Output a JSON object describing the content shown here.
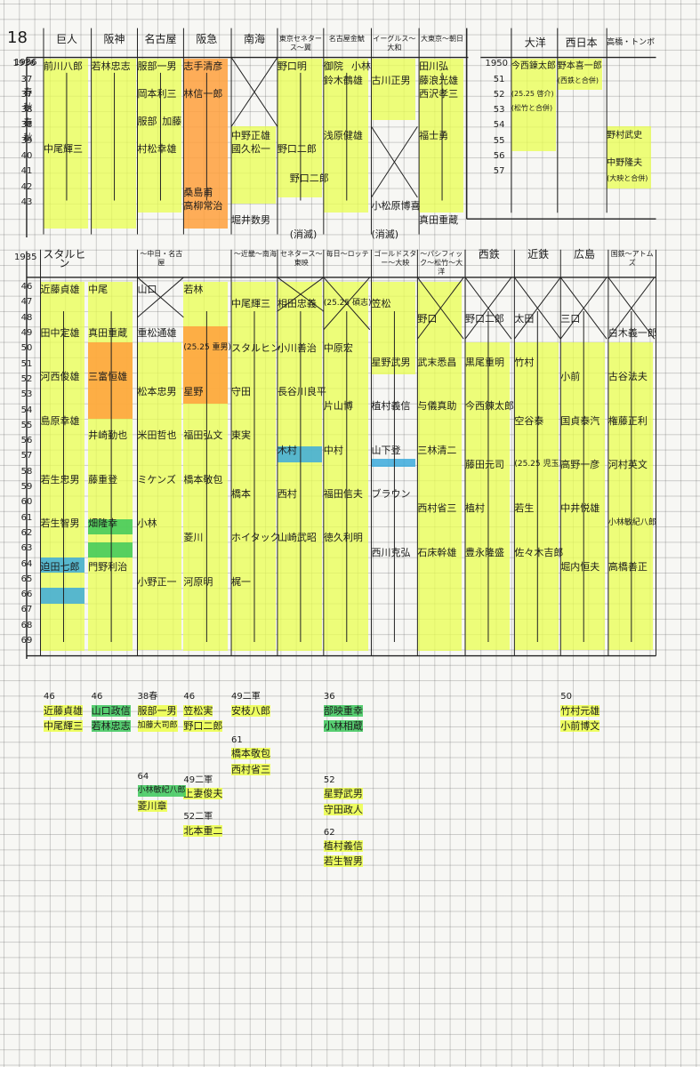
{
  "top_section": {
    "era": "1936",
    "headers": [
      "巨人",
      "阪神",
      "名古屋",
      "阪急",
      "南海",
      "東京セネタース〜翼",
      "名古屋金鯱",
      "イーグルス〜大和",
      "大東京〜朝日"
    ],
    "years": [
      "1936",
      "37春",
      "37秋",
      "38春",
      "38秋",
      "39",
      "40",
      "41",
      "42",
      "43"
    ],
    "names": [
      "前川八郎",
      "若林忠志",
      "服部一男",
      "志手清彦",
      "野口明",
      "御院",
      "小林",
      "田川弘",
      "鈴木鶴雄",
      "古川正男",
      "藤浪光雄",
      "西沢孝三",
      "岡本利三",
      "林信一郎",
      "服部",
      "加藤",
      "村松幸雄",
      "中尾輝三",
      "中野正雄",
      "國久松一",
      "野口二郎",
      "浅原健雄",
      "福士勇",
      "野口二郎",
      "桑島甫",
      "高柳常治",
      "堀井数男",
      "小松原博喜",
      "真田重蔵",
      "(消滅)",
      "(消滅)"
    ]
  },
  "top_right": {
    "headers": [
      "大洋",
      "西日本",
      "高橋・トンボ"
    ],
    "years": [
      "1950",
      "51",
      "52",
      "53",
      "54",
      "55",
      "56",
      "57"
    ],
    "names": [
      "今西錬太郎",
      "野本喜一郎",
      "(西鉄と合併)",
      "(25.25 啓介)",
      "(松竹と合併)",
      "野村武史",
      "中野隆夫",
      "(大映と合併)"
    ]
  },
  "mid_section": {
    "era": "1935",
    "headers": [
      "スタルヒン",
      "〜中日・名古屋",
      "〜近畿〜南海",
      "セネタース〜東映",
      "毎日〜ロッテ",
      "ゴールドスター〜大映",
      "〜パシフィック〜松竹〜大洋",
      "西鉄",
      "近鉄",
      "広島",
      "国鉄〜アトムズ"
    ],
    "years": [
      "46",
      "47",
      "48",
      "49",
      "50",
      "51",
      "52",
      "53",
      "54",
      "55",
      "56",
      "57",
      "58",
      "59",
      "60",
      "61",
      "62",
      "63",
      "64",
      "65",
      "66",
      "67",
      "68",
      "69"
    ],
    "names": [
      "近藤貞雄",
      "中尾",
      "山口",
      "若林",
      "中尾輝三",
      "相田忠義",
      "(25.25 碩志)",
      "笠松",
      "野口",
      "野口二郎",
      "太田",
      "三口",
      "白木義一郎",
      "田中定雄",
      "真田重蔵",
      "重松通雄",
      "(25.25 重男)",
      "スタルヒン",
      "小川善治",
      "中原宏",
      "星野武男",
      "武末悉昌",
      "黒尾重明",
      "竹村",
      "小前",
      "古谷法夫",
      "河西俊雄",
      "三富恒雄",
      "松本忠男",
      "星野",
      "守田",
      "長谷川良平",
      "片山博",
      "植村義信",
      "与儀真助",
      "今西錬太郎",
      "空谷泰",
      "国貞泰汽",
      "権藤正利",
      "島原幸雄",
      "井崎勤也",
      "米田哲也",
      "福田弘文",
      "東実",
      "木村",
      "中村",
      "山下登",
      "三林清二",
      "藤田元司",
      "(25.25 児玉)",
      "高野一彦",
      "河村英文",
      "若生忠男",
      "藤重登",
      "ミケンズ",
      "橋本敬包",
      "橋本",
      "西村",
      "福田信夫",
      "ブラウン",
      "西村省三",
      "植村",
      "若生",
      "中井悦雄",
      "小林敏紀八郎",
      "若生智男",
      "畑隆幸",
      "小林",
      "菱川",
      "ホイタック",
      "山崎武昭",
      "徳久利明",
      "西川克弘",
      "石床幹雄",
      "豊永隆盛",
      "佐々木吉郎",
      "堀内恒夫",
      "高橋善正",
      "迫田七郎",
      "門野利治",
      "小野正一",
      "河原明",
      "梶一"
    ]
  },
  "bottom_section": {
    "groups": [
      {
        "year": "46",
        "names": [
          "近藤貞雄",
          "中尾輝三"
        ]
      },
      {
        "year": "46",
        "names": [
          "山口政信",
          "若林忠志"
        ]
      },
      {
        "year": "38春",
        "names": [
          "服部一男",
          "加藤大司郎"
        ]
      },
      {
        "year": "46",
        "names": [
          "笠松実",
          "野口二郎"
        ]
      },
      {
        "year": "49二軍",
        "names": [
          "安枝八郎"
        ]
      },
      {
        "year": "36",
        "names": [
          "部映重幸",
          "小林相蔵"
        ]
      },
      {
        "year": "50",
        "names": [
          "竹村元雄",
          "小前博文"
        ]
      },
      {
        "year": "61",
        "names": [
          "橋本敬包",
          "西村省三"
        ]
      },
      {
        "year": "49二軍",
        "names": [
          "上妻俊夫"
        ]
      },
      {
        "year": "64",
        "names": [
          "小林敏紀八郎",
          "菱川章"
        ]
      },
      {
        "year": "52",
        "names": [
          "星野武男",
          "守田政人"
        ]
      },
      {
        "year": "52二軍",
        "names": [
          "北本重二"
        ]
      },
      {
        "year": "62",
        "names": [
          "植村義信",
          "若生智男"
        ]
      }
    ]
  },
  "corner_label": "18"
}
